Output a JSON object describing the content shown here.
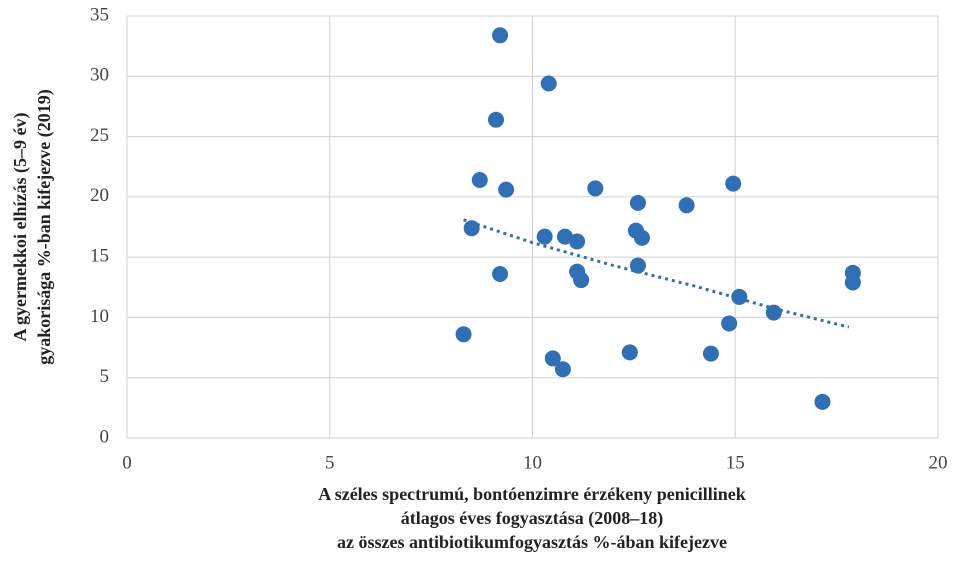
{
  "chart_data": {
    "type": "scatter",
    "xlabel": [
      "A széles spectrumú, bontóenzimre érzékeny penicillinek",
      "átlagos éves fogyasztása (2008–18)",
      "az összes antibiotikumfogyasztás %-ában kifejezve"
    ],
    "ylabel": [
      "A gyermekkoi elhízás (5–9 év)",
      "gyakorisága %-ban kifejezve (2019)"
    ],
    "xlim": [
      0,
      20
    ],
    "xticks": [
      0,
      5,
      10,
      15,
      20
    ],
    "ylim": [
      0,
      35
    ],
    "yticks": [
      0,
      5,
      10,
      15,
      20,
      25,
      30,
      35
    ],
    "grid": true,
    "color": "#2f6fb5",
    "x": [
      9.2,
      10.4,
      9.1,
      8.7,
      9.35,
      11.55,
      14.95,
      12.6,
      13.8,
      8.5,
      10.3,
      10.8,
      11.1,
      12.55,
      12.7,
      9.2,
      11.1,
      11.2,
      12.6,
      17.9,
      17.9,
      15.1,
      15.95,
      14.85,
      8.3,
      10.5,
      10.75,
      12.4,
      14.4,
      17.15
    ],
    "y": [
      33.4,
      29.4,
      26.4,
      21.4,
      20.6,
      20.7,
      21.1,
      19.5,
      19.3,
      17.4,
      16.7,
      16.7,
      16.3,
      17.2,
      16.6,
      13.6,
      13.8,
      13.1,
      14.3,
      13.7,
      12.9,
      11.7,
      10.4,
      9.5,
      8.6,
      6.6,
      5.7,
      7.1,
      7.0,
      3.0
    ],
    "trendline": {
      "color": "#2f6fb5",
      "x": [
        8.3,
        10,
        12,
        14,
        16,
        17.8
      ],
      "y": [
        18.1,
        16.2,
        14.3,
        12.6,
        10.7,
        9.2
      ]
    }
  }
}
